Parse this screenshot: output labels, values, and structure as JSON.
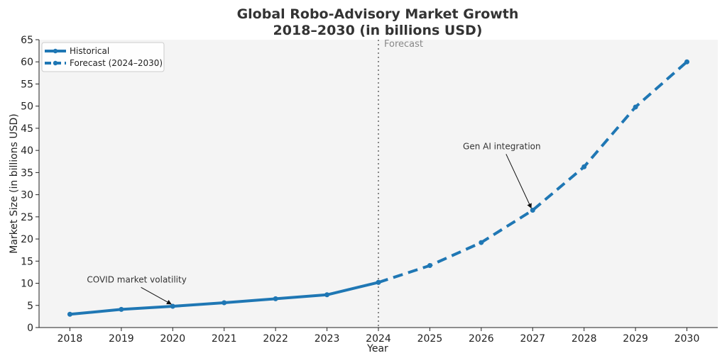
{
  "chart_data": {
    "type": "line",
    "title_line1": "Global Robo-Advisory Market Growth",
    "title_line2": "2018–2030 (in billions USD)",
    "xlabel": "Year",
    "ylabel": "Market Size (in billions USD)",
    "ylim": [
      0,
      65
    ],
    "yticks": [
      0,
      5,
      10,
      15,
      20,
      25,
      30,
      35,
      40,
      45,
      50,
      55,
      60,
      65
    ],
    "x": [
      2018,
      2019,
      2020,
      2021,
      2022,
      2023,
      2024,
      2025,
      2026,
      2027,
      2028,
      2029,
      2030
    ],
    "series": [
      {
        "name": "Historical",
        "style": "solid",
        "x": [
          2018,
          2019,
          2020,
          2021,
          2022,
          2023,
          2024
        ],
        "values": [
          3.0,
          4.1,
          4.8,
          5.6,
          6.5,
          7.4,
          10.2
        ]
      },
      {
        "name": "Forecast (2024–2030)",
        "style": "dashed",
        "x": [
          2024,
          2025,
          2026,
          2027,
          2028,
          2029,
          2030
        ],
        "values": [
          10.2,
          14.0,
          19.2,
          26.5,
          36.3,
          49.8,
          60.0
        ]
      }
    ],
    "forecast_line": {
      "x": 2024,
      "label": "Forecast"
    },
    "annotations": [
      {
        "text": "COVID market volatility",
        "text_x": 2019.3,
        "text_y": 10.2,
        "point_x": 2020,
        "point_y": 4.8
      },
      {
        "text": "Gen AI integration",
        "text_x": 2026.4,
        "text_y": 40.3,
        "point_x": 2027,
        "point_y": 26.5
      }
    ],
    "legend_position": "top-left",
    "grid": false,
    "colors": {
      "line": "#1f77b4",
      "plot_bg": "#f4f4f4",
      "vline": "#888888"
    }
  }
}
